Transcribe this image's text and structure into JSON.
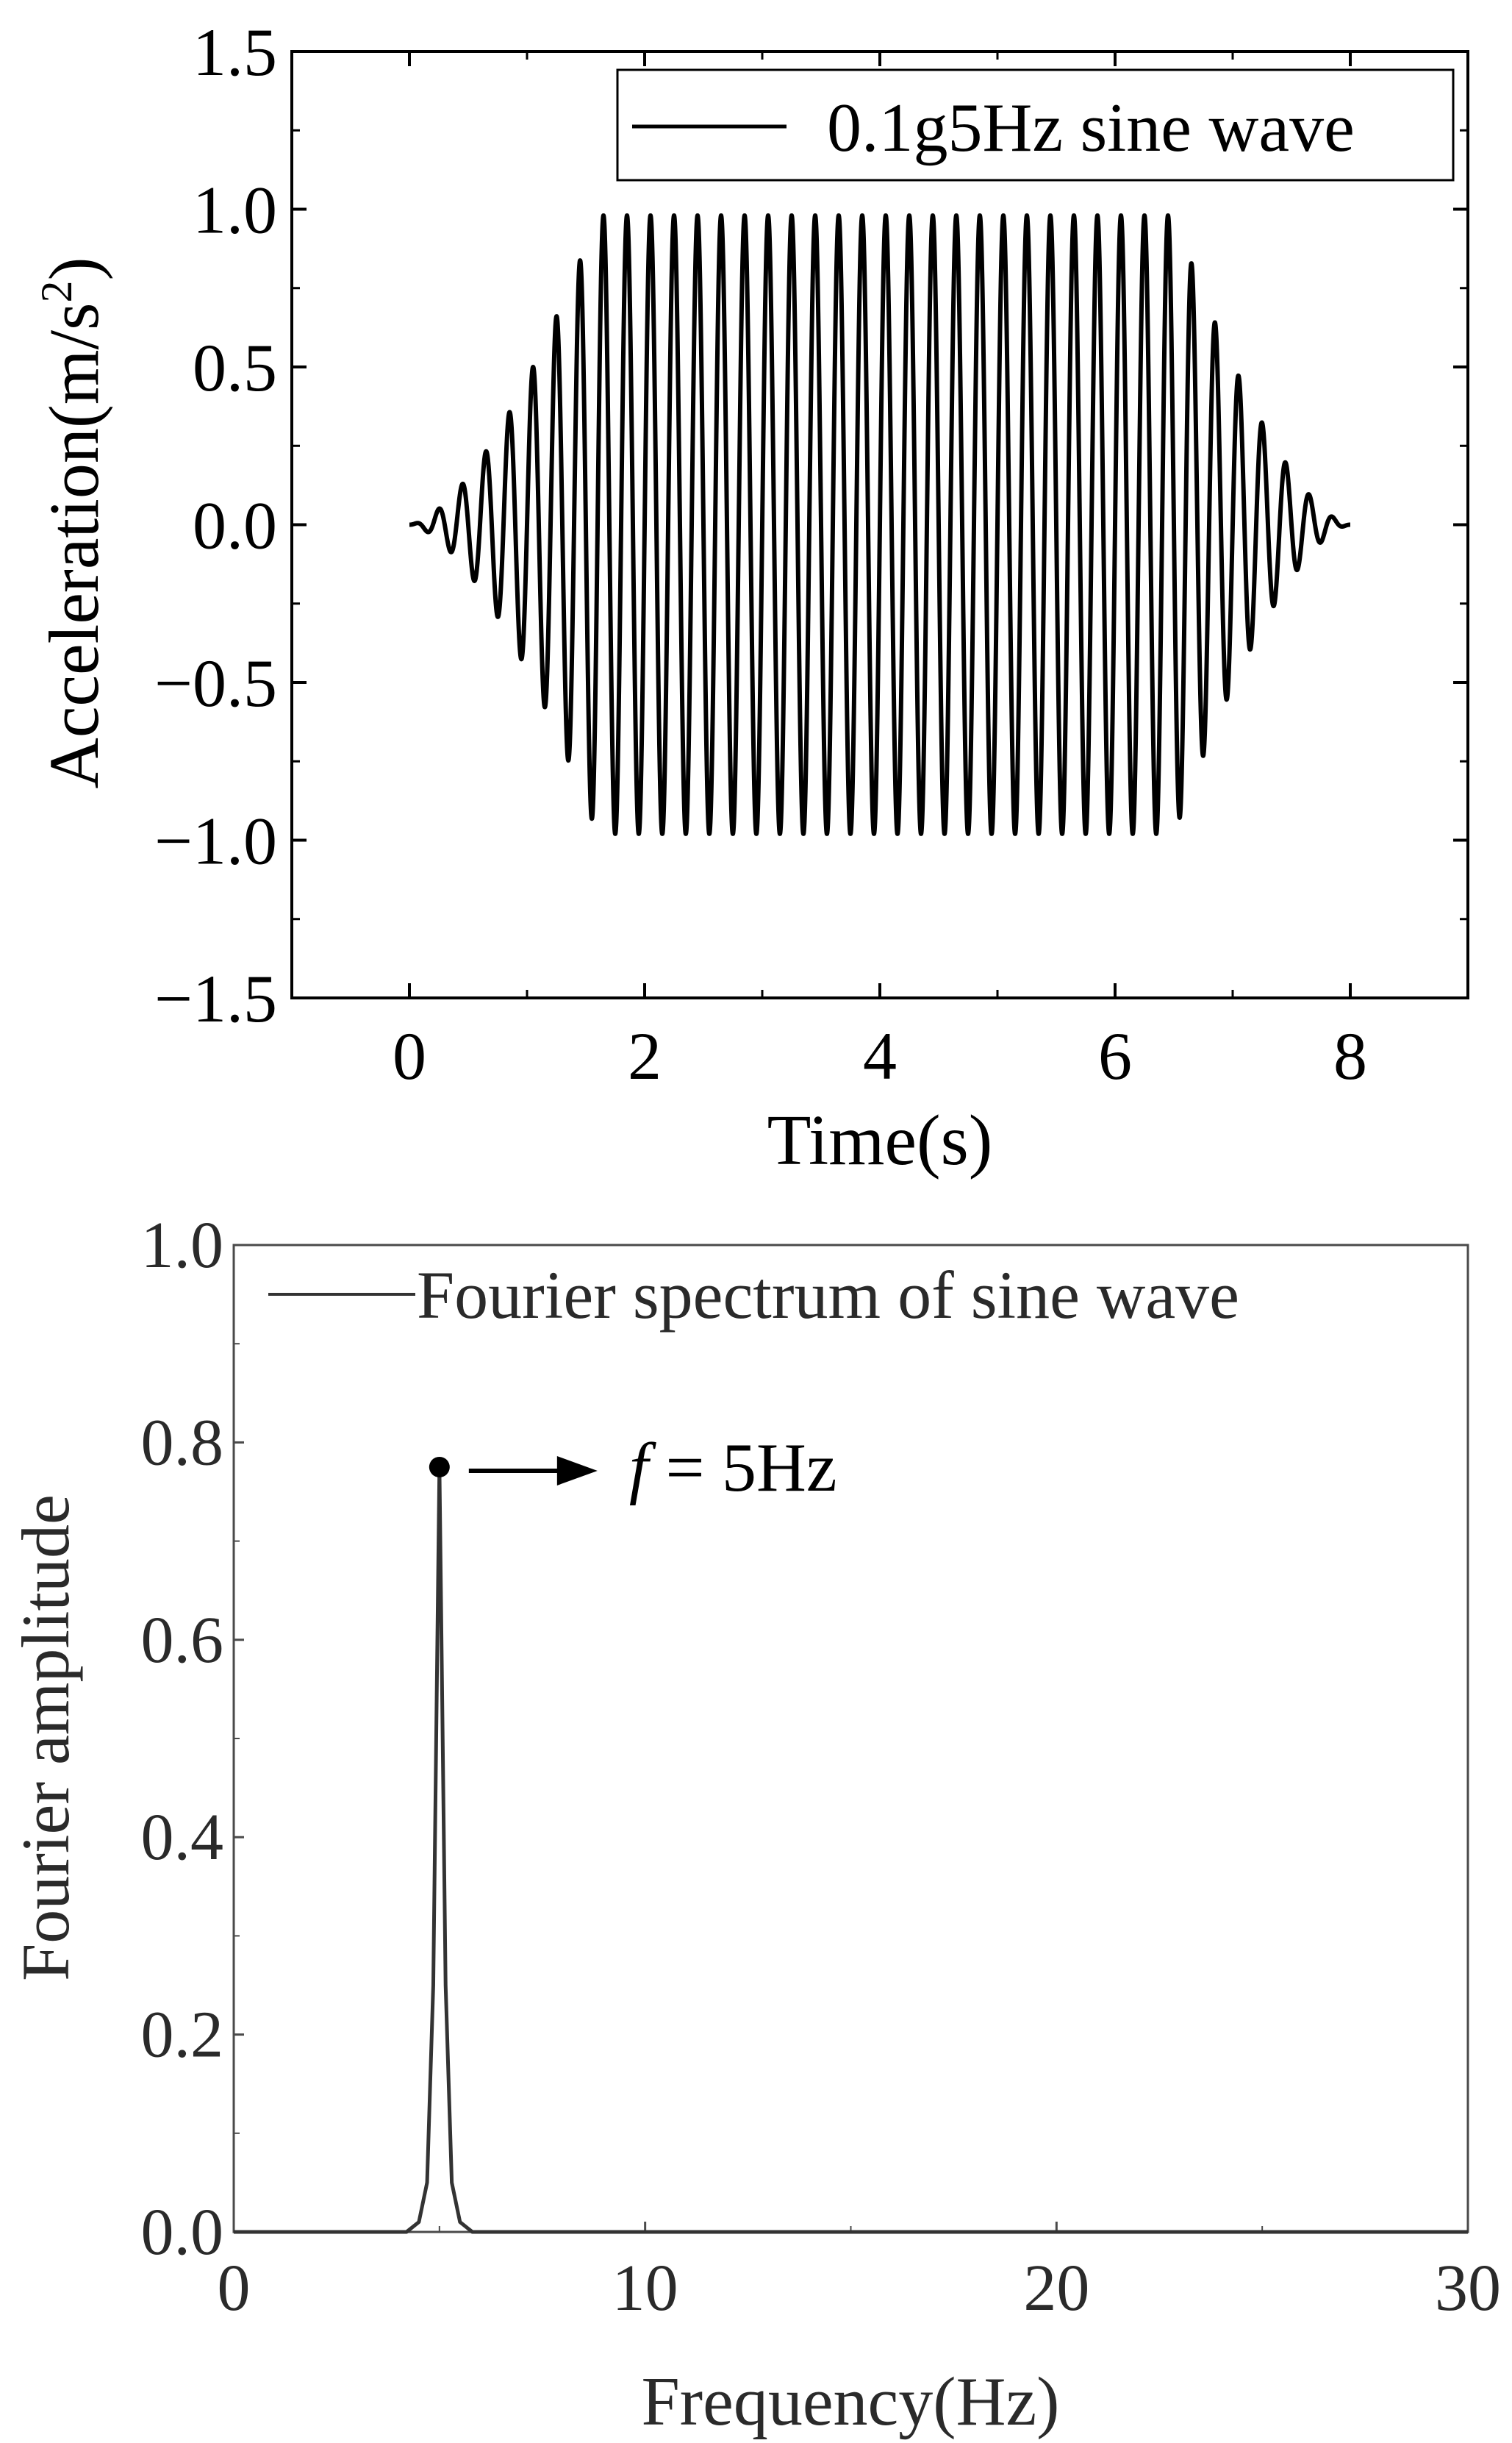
{
  "chart_data": [
    {
      "type": "line",
      "title": "",
      "xlabel": "Time(s)",
      "ylabel": "Acceleration(m/s",
      "ylabel_sup": "2",
      "ylabel_close": ")",
      "xlim": [
        -1,
        9
      ],
      "ylim": [
        -1.5,
        1.5
      ],
      "xticks": [
        0,
        2,
        4,
        6,
        8
      ],
      "yticks": [
        1.5,
        1.0,
        0.5,
        0.0,
        -0.5,
        -1.0,
        -1.5
      ],
      "xtick_labels": [
        "0",
        "2",
        "4",
        "6",
        "8"
      ],
      "ytick_labels": [
        "1.5",
        "1.0",
        "0.5",
        "0.0",
        "−0.5",
        "−1.0",
        "−1.5"
      ],
      "legend": {
        "label": "0.1g5Hz sine wave",
        "position": "top-right"
      },
      "series": [
        {
          "name": "0.1g5Hz sine wave",
          "frequency_hz": 5,
          "amplitude": 0.98,
          "t_start": 0,
          "t_end": 8,
          "ramp_up_end": 1.6,
          "ramp_down_start": 6.5
        }
      ]
    },
    {
      "type": "line",
      "title": "",
      "xlabel": "Frequency(Hz)",
      "ylabel": "Fourier amplitude",
      "xlim": [
        0,
        30
      ],
      "ylim": [
        0.0,
        1.0
      ],
      "xticks": [
        0,
        10,
        20,
        30
      ],
      "yticks": [
        1.0,
        0.8,
        0.6,
        0.4,
        0.2,
        0.0
      ],
      "xtick_labels": [
        "0",
        "10",
        "20",
        "30"
      ],
      "ytick_labels": [
        "1.0",
        "0.8",
        "0.6",
        "0.4",
        "0.2",
        "0.0"
      ],
      "legend": {
        "label": "Fourier spectrum of sine wave",
        "position": "top-right"
      },
      "series": [
        {
          "name": "Fourier spectrum of sine wave",
          "x": [
            0,
            4.2,
            4.5,
            4.7,
            4.85,
            5.0,
            5.15,
            5.3,
            5.5,
            5.8,
            6.2,
            30
          ],
          "y": [
            0.0,
            0.0,
            0.01,
            0.05,
            0.25,
            0.775,
            0.25,
            0.05,
            0.01,
            0.0,
            0.0,
            0.0
          ]
        }
      ],
      "annotation": {
        "point": [
          5,
          0.775
        ],
        "italic_text": "f",
        "text": " = 5Hz"
      }
    }
  ]
}
